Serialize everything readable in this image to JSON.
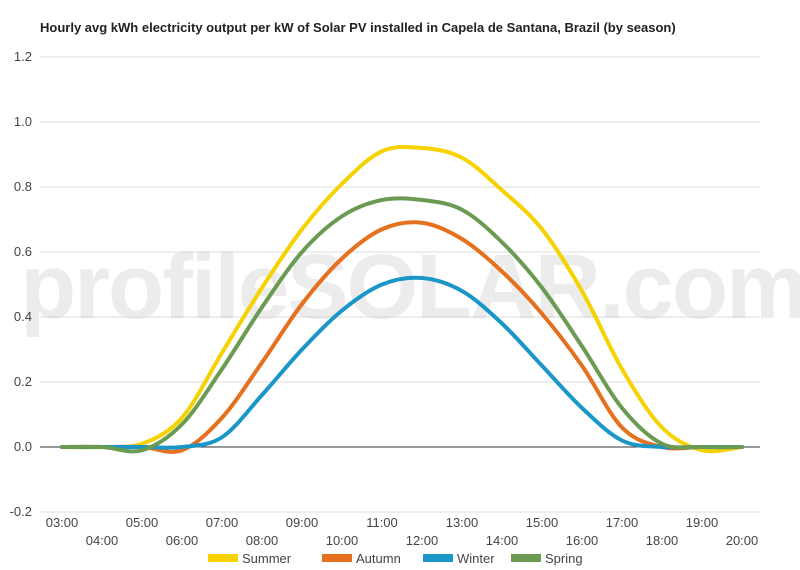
{
  "chart_data": {
    "type": "line",
    "title": "Hourly avg kWh electricity output per kW of Solar PV installed in Capela de Santana, Brazil (by season)",
    "xlabel": "",
    "ylabel": "",
    "watermark": "profileSOLAR.com",
    "ylim": [
      -0.2,
      1.2
    ],
    "yticks": [
      "-0.2",
      "0.0",
      "0.2",
      "0.4",
      "0.6",
      "0.8",
      "1.0",
      "1.2"
    ],
    "categories": [
      "03:00",
      "04:00",
      "05:00",
      "06:00",
      "07:00",
      "08:00",
      "09:00",
      "10:00",
      "11:00",
      "12:00",
      "13:00",
      "14:00",
      "15:00",
      "16:00",
      "17:00",
      "18:00",
      "19:00",
      "20:00"
    ],
    "grid": true,
    "legend_position": "bottom",
    "series": [
      {
        "name": "Summer",
        "color": "#f5d200",
        "values": [
          0,
          0,
          0.01,
          0.09,
          0.29,
          0.49,
          0.67,
          0.81,
          0.91,
          0.92,
          0.89,
          0.79,
          0.67,
          0.48,
          0.24,
          0.06,
          -0.01,
          0
        ]
      },
      {
        "name": "Autumn",
        "color": "#e5701e",
        "values": [
          0,
          0,
          0,
          -0.01,
          0.09,
          0.26,
          0.44,
          0.58,
          0.67,
          0.69,
          0.64,
          0.54,
          0.41,
          0.25,
          0.06,
          0,
          0,
          0
        ]
      },
      {
        "name": "Winter",
        "color": "#1a96c8",
        "values": [
          0,
          0,
          0,
          0,
          0.03,
          0.16,
          0.3,
          0.42,
          0.5,
          0.52,
          0.48,
          0.38,
          0.25,
          0.12,
          0.02,
          0,
          0,
          0
        ]
      },
      {
        "name": "Spring",
        "color": "#6b9a52",
        "values": [
          0,
          0,
          -0.01,
          0.07,
          0.24,
          0.43,
          0.6,
          0.71,
          0.76,
          0.76,
          0.73,
          0.63,
          0.49,
          0.31,
          0.12,
          0.01,
          0,
          0
        ]
      }
    ]
  }
}
